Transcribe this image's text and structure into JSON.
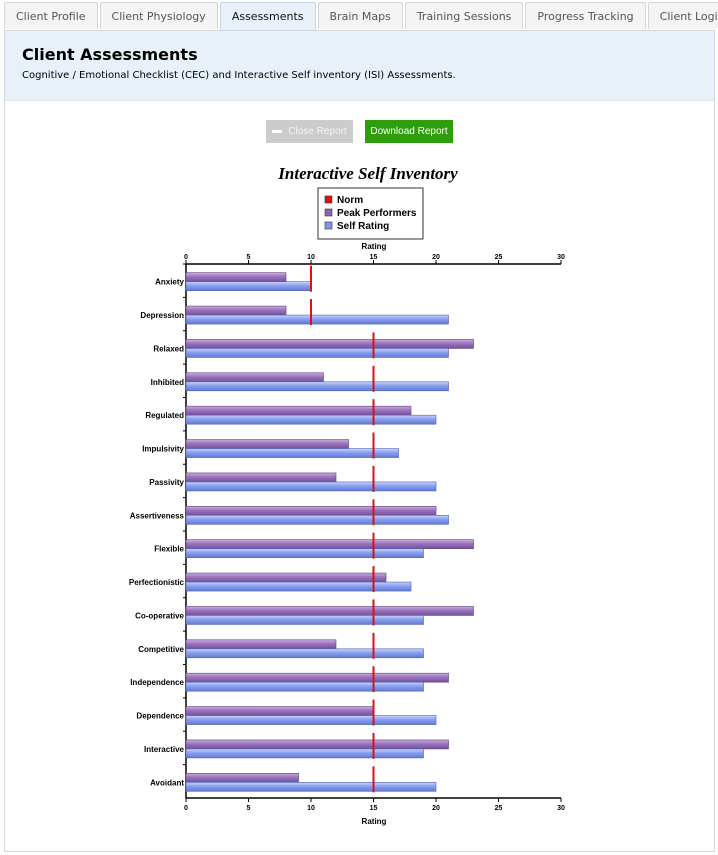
{
  "tabs": [
    {
      "label": "Client Profile",
      "active": false
    },
    {
      "label": "Client Physiology",
      "active": false
    },
    {
      "label": "Assessments",
      "active": true
    },
    {
      "label": "Brain Maps",
      "active": false
    },
    {
      "label": "Training Sessions",
      "active": false
    },
    {
      "label": "Progress Tracking",
      "active": false
    },
    {
      "label": "Client Login",
      "active": false
    }
  ],
  "header": {
    "title": "Client Assessments",
    "subtitle": "Cognitive / Emotional Checklist (CEC) and Interactive Self inventory (ISI) Assessments."
  },
  "buttons": {
    "close_label": "Close Report",
    "download_label": "Download Report"
  },
  "colors": {
    "norm": "#dd1111",
    "peak": "#8e63b0",
    "self": "#7f97e6"
  },
  "chart_data": {
    "type": "bar",
    "orientation": "horizontal",
    "title": "Interactive Self Inventory",
    "xlabel": "Rating",
    "ylabel": "",
    "xlim": [
      0,
      30
    ],
    "xticks": [
      0,
      5,
      10,
      15,
      20,
      25,
      30
    ],
    "legend_position": "top-center",
    "categories": [
      "Anxiety",
      "Depression",
      "Relaxed",
      "Inhibited",
      "Regulated",
      "Impulsivity",
      "Passivity",
      "Assertiveness",
      "Flexible",
      "Perfectionistic",
      "Co-operative",
      "Competitive",
      "Independence",
      "Dependence",
      "Interactive",
      "Avoidant"
    ],
    "series": [
      {
        "name": "Norm",
        "kind": "marker",
        "values": [
          10,
          10,
          15,
          15,
          15,
          15,
          15,
          15,
          15,
          15,
          15,
          15,
          15,
          15,
          15,
          15
        ]
      },
      {
        "name": "Peak Performers",
        "kind": "bar",
        "values": [
          8,
          8,
          23,
          11,
          18,
          13,
          12,
          20,
          23,
          16,
          23,
          12,
          21,
          15,
          21,
          9
        ]
      },
      {
        "name": "Self Rating",
        "kind": "bar",
        "values": [
          10,
          21,
          21,
          21,
          20,
          17,
          20,
          21,
          19,
          18,
          19,
          19,
          19,
          20,
          19,
          20
        ]
      }
    ]
  }
}
